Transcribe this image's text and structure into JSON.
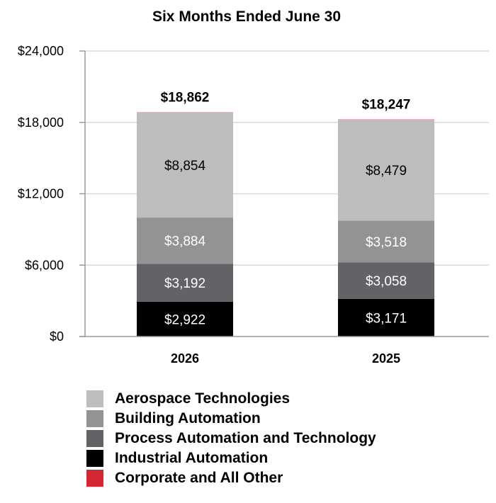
{
  "chart_data": {
    "type": "bar",
    "stacked": true,
    "title": "Six Months Ended June 30",
    "categories": [
      "2026",
      "2025"
    ],
    "ylim": [
      0,
      24000
    ],
    "yticks": [
      0,
      6000,
      12000,
      18000,
      24000
    ],
    "ytick_labels": [
      "$0",
      "$6,000",
      "$12,000",
      "$18,000",
      "$24,000"
    ],
    "grid": true,
    "legend_position": "bottom",
    "totals": [
      18862,
      18247
    ],
    "total_labels": [
      "$18,862",
      "$18,247"
    ],
    "series": [
      {
        "name": "Industrial Automation",
        "color": "#000000",
        "text_color": "#ffffff",
        "values": [
          2922,
          3171
        ],
        "labels": [
          "$2,922",
          "$3,171"
        ]
      },
      {
        "name": "Process Automation and Technology",
        "color": "#616366",
        "text_color": "#ffffff",
        "values": [
          3192,
          3058
        ],
        "labels": [
          "$3,192",
          "$3,058"
        ]
      },
      {
        "name": "Building Automation",
        "color": "#939393",
        "text_color": "#ffffff",
        "values": [
          3884,
          3518
        ],
        "labels": [
          "$3,884",
          "$3,518"
        ]
      },
      {
        "name": "Aerospace Technologies",
        "color": "#bcbdbf",
        "text_color": "#000000",
        "values": [
          8854,
          8479
        ],
        "labels": [
          "$8,854",
          "$8,479"
        ]
      },
      {
        "name": "Corporate and All Other",
        "color": "#d42734",
        "text_color": "#ffffff",
        "values": [
          10,
          21
        ],
        "labels": [
          "",
          ""
        ]
      }
    ]
  },
  "legend": {
    "items": [
      {
        "label": "Aerospace Technologies",
        "color": "#bcbdbf"
      },
      {
        "label": "Building Automation",
        "color": "#939393"
      },
      {
        "label": "Process Automation and Technology",
        "color": "#616366"
      },
      {
        "label": "Industrial Automation",
        "color": "#000000"
      },
      {
        "label": "Corporate and All Other",
        "color": "#d42734"
      }
    ]
  }
}
